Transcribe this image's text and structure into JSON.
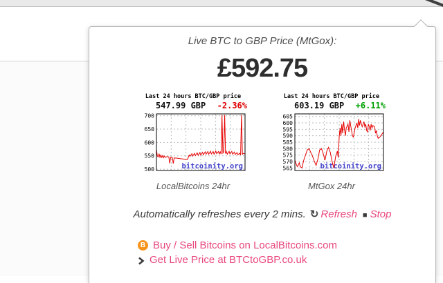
{
  "popup": {
    "title": "Live BTC to GBP Price (MtGox):",
    "price": "£592.75",
    "refresh_note": "Automatically refreshes every 2 mins.",
    "refresh_icon": "↻",
    "refresh_label": "Refresh",
    "stop_icon": "■",
    "stop_label": "Stop",
    "link_color": "#e8467e",
    "links": [
      {
        "icon": "bitcoin-icon",
        "icon_glyph": "B",
        "label": "Buy / Sell Bitcoins on LocalBitcoins.com"
      },
      {
        "icon": "chevron-right-icon",
        "label": "Get Live Price at BTCtoGBP.co.uk"
      }
    ]
  },
  "chart_data": [
    {
      "type": "line",
      "title": "Last 24 hours BTC/GBP price",
      "price_label": "547.99 GBP",
      "change_label": "-2.36%",
      "change_color": "#dd0000",
      "caption": "LocalBitcoins 24hr",
      "watermark": "bitcoinity.org",
      "watermark_color": "#4444cc",
      "line_color": "#e60000",
      "ylim": [
        495,
        707
      ],
      "yticks": [
        500,
        550,
        600,
        650,
        700
      ],
      "vgrid": [
        0.167,
        0.333,
        0.5,
        0.667,
        0.833
      ],
      "points": [
        [
          0,
          574
        ],
        [
          0.01,
          549
        ],
        [
          0.02,
          546
        ],
        [
          0.03,
          558
        ],
        [
          0.04,
          544
        ],
        [
          0.05,
          553
        ],
        [
          0.06,
          544
        ],
        [
          0.07,
          551
        ],
        [
          0.08,
          543
        ],
        [
          0.09,
          549
        ],
        [
          0.1,
          544
        ],
        [
          0.12,
          547
        ],
        [
          0.14,
          546
        ],
        [
          0.15,
          522
        ],
        [
          0.16,
          544
        ],
        [
          0.18,
          543
        ],
        [
          0.19,
          521
        ],
        [
          0.2,
          542
        ],
        [
          0.24,
          541
        ],
        [
          0.28,
          539
        ],
        [
          0.32,
          537
        ],
        [
          0.35,
          536
        ],
        [
          0.37,
          553
        ],
        [
          0.38,
          548
        ],
        [
          0.4,
          558
        ],
        [
          0.41,
          549
        ],
        [
          0.43,
          559
        ],
        [
          0.44,
          551
        ],
        [
          0.46,
          561
        ],
        [
          0.47,
          552
        ],
        [
          0.49,
          562
        ],
        [
          0.5,
          553
        ],
        [
          0.52,
          563
        ],
        [
          0.53,
          554
        ],
        [
          0.55,
          565
        ],
        [
          0.56,
          556
        ],
        [
          0.58,
          566
        ],
        [
          0.59,
          556
        ],
        [
          0.61,
          567
        ],
        [
          0.62,
          557
        ],
        [
          0.64,
          566
        ],
        [
          0.65,
          556
        ],
        [
          0.67,
          568
        ],
        [
          0.68,
          558
        ],
        [
          0.7,
          566
        ],
        [
          0.71,
          557
        ],
        [
          0.72,
          565
        ],
        [
          0.73,
          556
        ],
        [
          0.74,
          703
        ],
        [
          0.75,
          560
        ],
        [
          0.76,
          565
        ],
        [
          0.77,
          703
        ],
        [
          0.78,
          558
        ],
        [
          0.79,
          566
        ],
        [
          0.8,
          556
        ],
        [
          0.82,
          567
        ],
        [
          0.83,
          557
        ],
        [
          0.85,
          566
        ],
        [
          0.86,
          556
        ],
        [
          0.88,
          564
        ],
        [
          0.89,
          555
        ],
        [
          0.91,
          562
        ],
        [
          0.92,
          554
        ],
        [
          0.94,
          560
        ],
        [
          0.95,
          553
        ],
        [
          0.96,
          703
        ],
        [
          0.97,
          556
        ],
        [
          0.98,
          559
        ],
        [
          1,
          557
        ]
      ]
    },
    {
      "type": "line",
      "title": "Last 24 hours BTC/GBP price",
      "price_label": "603.19 GBP",
      "change_label": "+6.11%",
      "change_color": "#00a000",
      "caption": "MtGox 24hr",
      "watermark": "bitcoinity.org",
      "watermark_color": "#4444cc",
      "line_color": "#e60000",
      "ylim": [
        563,
        607
      ],
      "yticks": [
        565,
        570,
        575,
        580,
        585,
        590,
        595,
        600,
        605
      ],
      "vgrid": [
        0.167,
        0.333,
        0.5,
        0.667,
        0.833
      ],
      "points": [
        [
          0,
          571
        ],
        [
          0.02,
          567
        ],
        [
          0.03,
          566
        ],
        [
          0.05,
          569
        ],
        [
          0.06,
          566
        ],
        [
          0.08,
          565
        ],
        [
          0.1,
          571
        ],
        [
          0.12,
          575
        ],
        [
          0.14,
          579
        ],
        [
          0.16,
          580
        ],
        [
          0.18,
          577
        ],
        [
          0.2,
          574
        ],
        [
          0.22,
          570
        ],
        [
          0.24,
          567
        ],
        [
          0.26,
          572
        ],
        [
          0.28,
          579
        ],
        [
          0.3,
          580
        ],
        [
          0.32,
          576
        ],
        [
          0.34,
          571
        ],
        [
          0.36,
          578
        ],
        [
          0.38,
          581
        ],
        [
          0.4,
          577
        ],
        [
          0.42,
          570
        ],
        [
          0.44,
          565
        ],
        [
          0.46,
          574
        ],
        [
          0.48,
          578
        ],
        [
          0.49,
          573
        ],
        [
          0.5,
          589
        ],
        [
          0.51,
          596
        ],
        [
          0.52,
          590
        ],
        [
          0.53,
          599
        ],
        [
          0.54,
          592
        ],
        [
          0.55,
          601
        ],
        [
          0.56,
          595
        ],
        [
          0.57,
          590
        ],
        [
          0.58,
          596
        ],
        [
          0.6,
          599
        ],
        [
          0.61,
          593
        ],
        [
          0.62,
          602
        ],
        [
          0.63,
          598
        ],
        [
          0.64,
          594
        ],
        [
          0.65,
          590
        ],
        [
          0.66,
          589
        ],
        [
          0.68,
          596
        ],
        [
          0.7,
          600
        ],
        [
          0.71,
          596
        ],
        [
          0.72,
          603
        ],
        [
          0.73,
          598
        ],
        [
          0.74,
          602
        ],
        [
          0.75,
          599
        ],
        [
          0.76,
          597
        ],
        [
          0.78,
          601
        ],
        [
          0.79,
          597
        ],
        [
          0.8,
          599
        ],
        [
          0.81,
          594
        ],
        [
          0.82,
          593
        ],
        [
          0.83,
          599
        ],
        [
          0.84,
          597
        ],
        [
          0.85,
          594
        ],
        [
          0.86,
          599
        ],
        [
          0.87,
          596
        ],
        [
          0.88,
          598
        ],
        [
          0.9,
          597
        ],
        [
          0.91,
          592
        ],
        [
          0.92,
          594
        ],
        [
          0.93,
          590
        ],
        [
          0.94,
          588
        ],
        [
          0.96,
          589
        ],
        [
          0.98,
          591
        ],
        [
          1,
          593
        ]
      ]
    }
  ]
}
